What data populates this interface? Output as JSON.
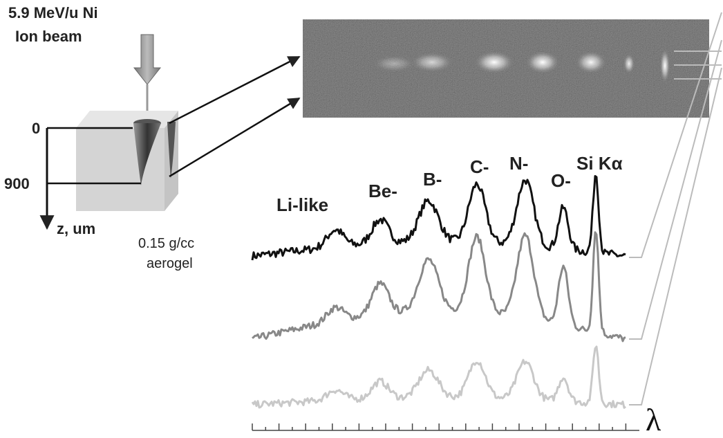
{
  "source": {
    "line1": "5.9 MeV/u Ni",
    "line2": "Ion beam"
  },
  "depth_axis": {
    "ticks": [
      "0",
      "900"
    ],
    "label": "z, um"
  },
  "target": {
    "line1": "0.15 g/cc",
    "line2": "aerogel"
  },
  "peaks": [
    "Li-like",
    "Be-",
    "B-",
    "C-",
    "N-",
    "O-",
    "Si Kα"
  ],
  "wavelength_label": "λ"
}
